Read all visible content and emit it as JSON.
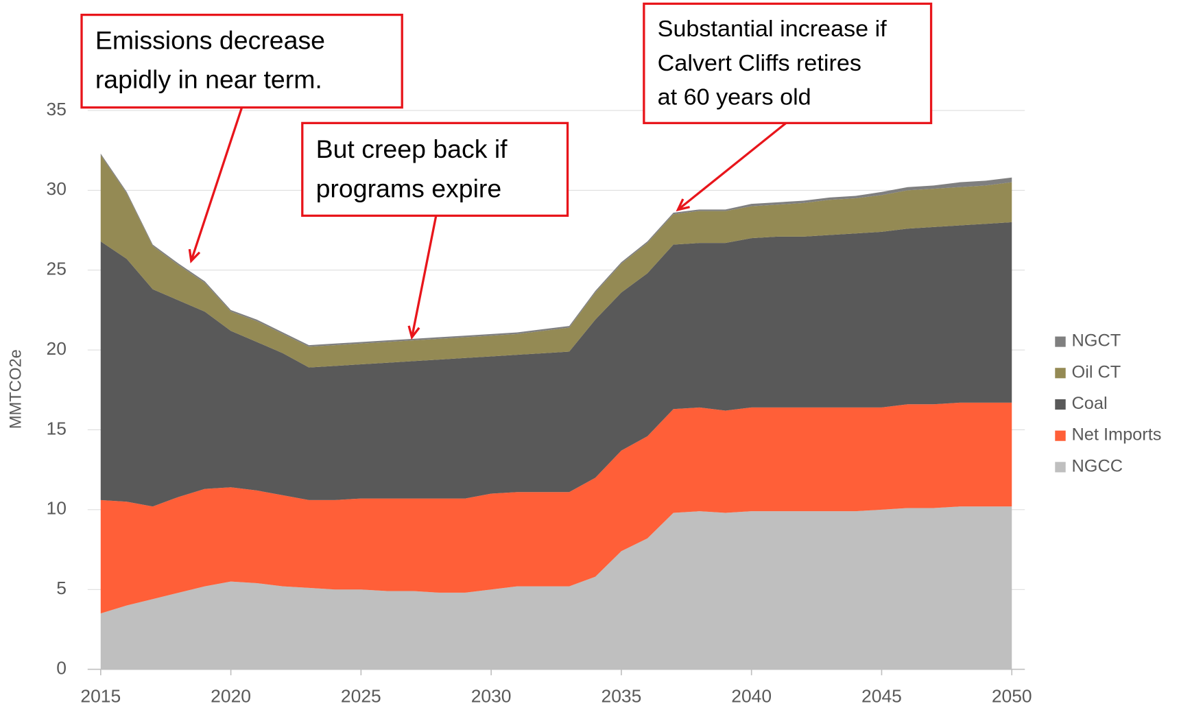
{
  "chart_data": {
    "type": "stacked_area",
    "y_label": "MMTCO2e",
    "x": [
      2015,
      2016,
      2017,
      2018,
      2019,
      2020,
      2021,
      2022,
      2023,
      2024,
      2025,
      2026,
      2027,
      2028,
      2029,
      2030,
      2031,
      2032,
      2033,
      2034,
      2035,
      2036,
      2037,
      2038,
      2039,
      2040,
      2041,
      2042,
      2043,
      2044,
      2045,
      2046,
      2047,
      2048,
      2049,
      2050
    ],
    "series": [
      {
        "name": "NGCC",
        "color": "#bfbfbf",
        "values": [
          3.5,
          4.0,
          4.4,
          4.8,
          5.2,
          5.5,
          5.4,
          5.2,
          5.1,
          5.0,
          5.0,
          4.9,
          4.9,
          4.8,
          4.8,
          5.0,
          5.2,
          5.2,
          5.2,
          5.8,
          7.4,
          8.2,
          9.8,
          9.9,
          9.8,
          9.9,
          9.9,
          9.9,
          9.9,
          9.9,
          10.0,
          10.1,
          10.1,
          10.2,
          10.2,
          10.2
        ]
      },
      {
        "name": "Net Imports",
        "color": "#ff5f38",
        "values": [
          7.1,
          6.5,
          5.8,
          6.0,
          6.1,
          5.9,
          5.8,
          5.7,
          5.5,
          5.6,
          5.7,
          5.8,
          5.8,
          5.9,
          5.9,
          6.0,
          5.9,
          5.9,
          5.9,
          6.2,
          6.3,
          6.4,
          6.5,
          6.5,
          6.4,
          6.5,
          6.5,
          6.5,
          6.5,
          6.5,
          6.4,
          6.5,
          6.5,
          6.5,
          6.5,
          6.5
        ]
      },
      {
        "name": "Coal",
        "color": "#595959",
        "values": [
          16.2,
          15.2,
          13.6,
          12.3,
          11.1,
          9.8,
          9.3,
          8.9,
          8.3,
          8.4,
          8.4,
          8.5,
          8.6,
          8.7,
          8.8,
          8.6,
          8.6,
          8.7,
          8.8,
          9.9,
          9.9,
          10.2,
          10.3,
          10.3,
          10.5,
          10.6,
          10.7,
          10.7,
          10.8,
          10.9,
          11.0,
          11.0,
          11.1,
          11.1,
          11.2,
          11.3
        ]
      },
      {
        "name": "Oil CT",
        "color": "#948a54",
        "values": [
          5.4,
          4.1,
          2.7,
          2.2,
          1.8,
          1.2,
          1.3,
          1.2,
          1.3,
          1.3,
          1.3,
          1.3,
          1.3,
          1.3,
          1.3,
          1.3,
          1.3,
          1.4,
          1.5,
          1.7,
          1.8,
          1.9,
          1.9,
          2.0,
          2.0,
          2.0,
          2.0,
          2.1,
          2.2,
          2.2,
          2.3,
          2.4,
          2.4,
          2.4,
          2.4,
          2.5
        ]
      },
      {
        "name": "NGCT",
        "color": "#7f7f7f",
        "values": [
          0.1,
          0.1,
          0.1,
          0.1,
          0.1,
          0.1,
          0.1,
          0.1,
          0.1,
          0.1,
          0.1,
          0.1,
          0.1,
          0.1,
          0.1,
          0.1,
          0.1,
          0.1,
          0.1,
          0.1,
          0.1,
          0.1,
          0.1,
          0.1,
          0.1,
          0.15,
          0.15,
          0.15,
          0.15,
          0.15,
          0.2,
          0.2,
          0.2,
          0.3,
          0.3,
          0.3
        ]
      }
    ],
    "xlim": [
      2014.5,
      2050.5
    ],
    "xticks": [
      2015,
      2020,
      2025,
      2030,
      2035,
      2040,
      2045,
      2050
    ],
    "ylim": [
      0,
      35
    ],
    "yticks": [
      0,
      5,
      10,
      15,
      20,
      25,
      30,
      35
    ],
    "grid": true,
    "legend": "right",
    "annotations": [
      {
        "lines": [
          "Emissions decrease",
          "rapidly in near term."
        ],
        "color": "#e8151b"
      },
      {
        "lines": [
          "But creep back if",
          "programs expire"
        ],
        "color": "#e8151b"
      },
      {
        "lines": [
          "Substantial increase if",
          "Calvert Cliffs retires",
          "at 60 years old"
        ],
        "color": "#e8151b"
      }
    ]
  }
}
